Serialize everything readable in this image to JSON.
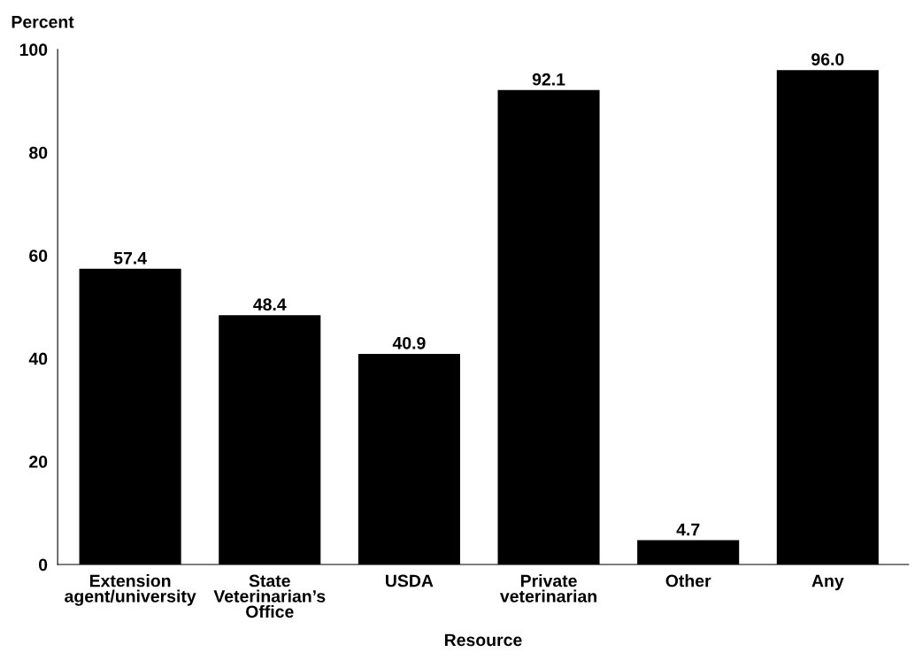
{
  "chart_data": {
    "type": "bar",
    "ylabel": "Percent",
    "xlabel": "Resource",
    "categories": [
      "Extension\nagent/university",
      "State\nVeterinarian’s\nOffice",
      "USDA",
      "Private\nveterinarian",
      "Other",
      "Any"
    ],
    "values": [
      57.4,
      48.4,
      40.9,
      92.1,
      4.7,
      96.0
    ],
    "value_labels": [
      "57.4",
      "48.4",
      "40.9",
      "92.1",
      "4.7",
      "96.0"
    ],
    "color": "#000000",
    "ylim": [
      0,
      100
    ],
    "yticks": [
      0,
      20,
      40,
      60,
      80,
      100
    ],
    "grid": false,
    "legend": false
  }
}
